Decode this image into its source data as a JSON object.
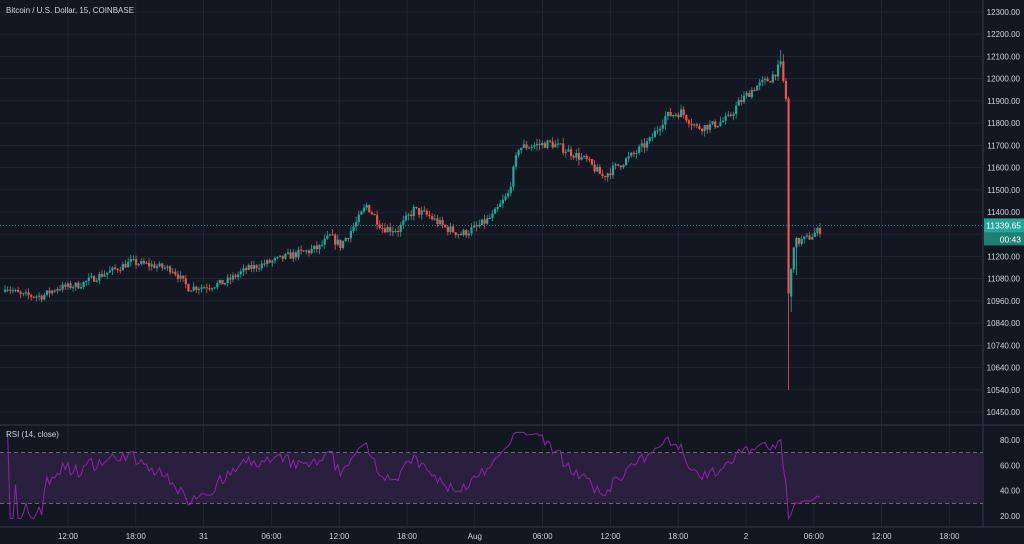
{
  "symbol_title": "Bitcoin / U.S. Dollar, 15, COINBASE",
  "rsi_title": "RSI (14, close)",
  "colors": {
    "background": "#131722",
    "grid": "#2a2e39",
    "text": "#d1d4dc",
    "up": "#26a69a",
    "down": "#ef5350",
    "rsi_line": "#8e24aa",
    "rsi_band": "#2a1f3d",
    "price_line": "#26a69a"
  },
  "price_axis": {
    "ticks": [
      "12300.00",
      "12200.00",
      "12100.00",
      "12000.00",
      "11900.00",
      "11800.00",
      "11700.00",
      "11600.00",
      "11500.00",
      "11400.00",
      "11300.00",
      "11200.00",
      "11080.00",
      "10960.00",
      "10840.00",
      "10740.00",
      "10640.00",
      "10540.00",
      "10450.00"
    ]
  },
  "current_price": {
    "value": "11339.65",
    "countdown": "00:43"
  },
  "rsi_axis": {
    "ticks": [
      "80.00",
      "60.00",
      "40.00",
      "20.00"
    ]
  },
  "time_axis": {
    "labels": [
      "12:00",
      "18:00",
      "31",
      "06:00",
      "12:00",
      "18:00",
      "Aug",
      "06:00",
      "12:00",
      "18:00",
      "2",
      "06:00",
      "12:00",
      "18:00"
    ]
  },
  "chart_data": [
    {
      "type": "candlestick",
      "title": "Bitcoin / U.S. Dollar, 15, COINBASE",
      "ylim": [
        10420,
        12340
      ],
      "key_points": [
        {
          "i": 0,
          "v": 11040
        },
        {
          "i": 6,
          "v": 10990
        },
        {
          "i": 14,
          "v": 10985
        },
        {
          "i": 20,
          "v": 11030
        },
        {
          "i": 28,
          "v": 11045
        },
        {
          "i": 35,
          "v": 11090
        },
        {
          "i": 42,
          "v": 11130
        },
        {
          "i": 48,
          "v": 11170
        },
        {
          "i": 52,
          "v": 11160
        },
        {
          "i": 57,
          "v": 11150
        },
        {
          "i": 64,
          "v": 11130
        },
        {
          "i": 70,
          "v": 11030
        },
        {
          "i": 78,
          "v": 11040
        },
        {
          "i": 84,
          "v": 11060
        },
        {
          "i": 92,
          "v": 11130
        },
        {
          "i": 100,
          "v": 11165
        },
        {
          "i": 108,
          "v": 11200
        },
        {
          "i": 116,
          "v": 11225
        },
        {
          "i": 120,
          "v": 11240
        },
        {
          "i": 124,
          "v": 11290
        },
        {
          "i": 128,
          "v": 11250
        },
        {
          "i": 134,
          "v": 11350
        },
        {
          "i": 138,
          "v": 11430
        },
        {
          "i": 144,
          "v": 11330
        },
        {
          "i": 150,
          "v": 11320
        },
        {
          "i": 156,
          "v": 11410
        },
        {
          "i": 162,
          "v": 11380
        },
        {
          "i": 168,
          "v": 11330
        },
        {
          "i": 174,
          "v": 11300
        },
        {
          "i": 180,
          "v": 11330
        },
        {
          "i": 186,
          "v": 11380
        },
        {
          "i": 192,
          "v": 11480
        },
        {
          "i": 196,
          "v": 11690
        },
        {
          "i": 202,
          "v": 11700
        },
        {
          "i": 208,
          "v": 11710
        },
        {
          "i": 214,
          "v": 11680
        },
        {
          "i": 222,
          "v": 11630
        },
        {
          "i": 228,
          "v": 11560
        },
        {
          "i": 234,
          "v": 11610
        },
        {
          "i": 240,
          "v": 11660
        },
        {
          "i": 246,
          "v": 11720
        },
        {
          "i": 252,
          "v": 11830
        },
        {
          "i": 258,
          "v": 11850
        },
        {
          "i": 264,
          "v": 11780
        },
        {
          "i": 270,
          "v": 11790
        },
        {
          "i": 276,
          "v": 11820
        },
        {
          "i": 280,
          "v": 11890
        },
        {
          "i": 286,
          "v": 11960
        },
        {
          "i": 292,
          "v": 12000
        },
        {
          "i": 296,
          "v": 12060
        },
        {
          "i": 298,
          "v": 11910
        },
        {
          "i": 299,
          "v": 10980
        },
        {
          "i": 301,
          "v": 11260
        },
        {
          "i": 306,
          "v": 11280
        },
        {
          "i": 311,
          "v": 11320
        }
      ]
    },
    {
      "type": "line",
      "title": "RSI (14, close)",
      "ylim": [
        20,
        85
      ],
      "bands": [
        30,
        70
      ]
    }
  ]
}
